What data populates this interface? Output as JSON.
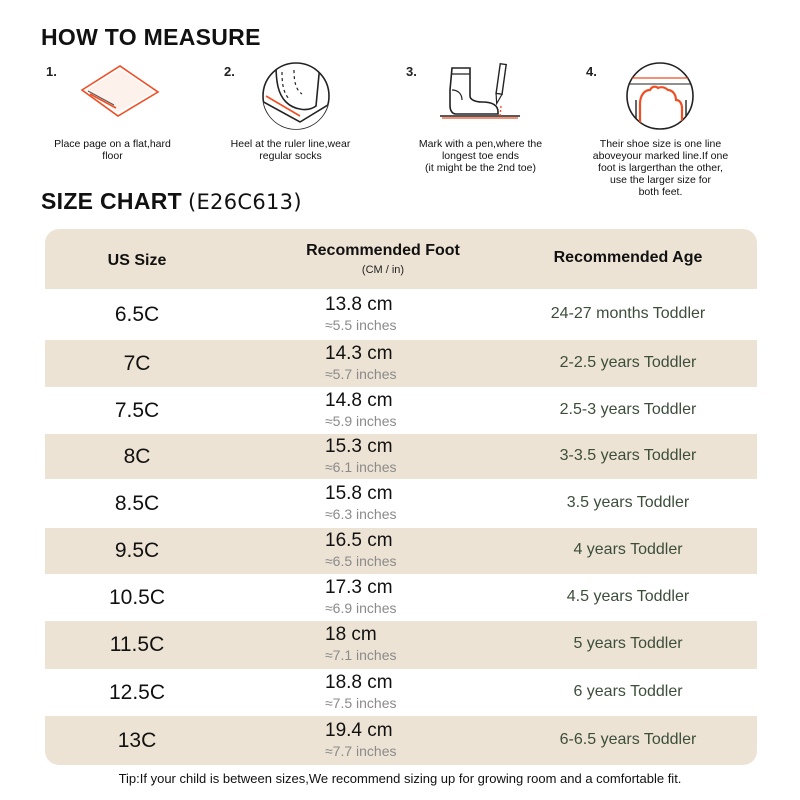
{
  "how_to_measure": {
    "title": "HOW TO MEASURE",
    "steps": [
      {
        "number": "1.",
        "caption": "Place page on a flat,hard\nfloor",
        "icon": "paper-icon"
      },
      {
        "number": "2.",
        "caption": "Heel at the ruler line,wear\nregular socks",
        "icon": "heel-on-paper-icon"
      },
      {
        "number": "3.",
        "caption": "Mark with a pen,where the\nlongest toe ends\n(it might be the 2nd toe)",
        "icon": "sock-and-pen-icon"
      },
      {
        "number": "4.",
        "caption": "Their shoe size is one line\naboveyour marked line.If one\nfoot is largerthan the other,\nuse the larger size for\nboth feet.",
        "icon": "toe-outline-icon"
      }
    ]
  },
  "size_chart": {
    "title": "SIZE CHART",
    "model": "(E26C613)",
    "headers": {
      "us_size": "US Size",
      "foot": "Recommended Foot",
      "foot_units": "(CM / in)",
      "age": "Recommended Age"
    },
    "rows": [
      {
        "us": "6.5C",
        "cm": "13.8 cm",
        "inches": "≈5.5 inches",
        "age": "24-27 months Toddler"
      },
      {
        "us": "7C",
        "cm": "14.3 cm",
        "inches": "≈5.7 inches",
        "age": "2-2.5 years Toddler"
      },
      {
        "us": "7.5C",
        "cm": "14.8 cm",
        "inches": "≈5.9 inches",
        "age": "2.5-3 years Toddler"
      },
      {
        "us": "8C",
        "cm": "15.3 cm",
        "inches": "≈6.1 inches",
        "age": "3-3.5 years Toddler"
      },
      {
        "us": "8.5C",
        "cm": "15.8 cm",
        "inches": "≈6.3 inches",
        "age": "3.5 years Toddler"
      },
      {
        "us": "9.5C",
        "cm": "16.5 cm",
        "inches": "≈6.5 inches",
        "age": "4 years Toddler"
      },
      {
        "us": "10.5C",
        "cm": "17.3 cm",
        "inches": "≈6.9 inches",
        "age": "4.5 years Toddler"
      },
      {
        "us": "11.5C",
        "cm": "18 cm",
        "inches": "≈7.1 inches",
        "age": "5 years Toddler"
      },
      {
        "us": "12.5C",
        "cm": "18.8 cm",
        "inches": "≈7.5 inches",
        "age": "6 years Toddler"
      },
      {
        "us": "13C",
        "cm": "19.4 cm",
        "inches": "≈7.7 inches",
        "age": "6-6.5 years Toddler"
      }
    ]
  },
  "tip": "Tip:If your child is between sizes,We recommend sizing up for growing room and a comfortable fit.",
  "colors": {
    "accent": "#f04e23",
    "stripe": "#ede3d4",
    "age_text": "#3c4e3a",
    "inch_text": "#8a8a8a"
  }
}
